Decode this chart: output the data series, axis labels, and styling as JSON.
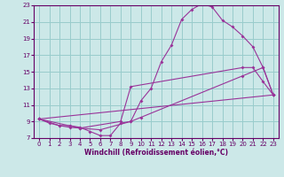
{
  "xlabel": "Windchill (Refroidissement éolien,°C)",
  "bg_color": "#cce8e8",
  "line_color": "#993399",
  "grid_color": "#99cccc",
  "xlim": [
    -0.5,
    23.5
  ],
  "ylim": [
    7,
    23
  ],
  "xticks": [
    0,
    1,
    2,
    3,
    4,
    5,
    6,
    7,
    8,
    9,
    10,
    11,
    12,
    13,
    14,
    15,
    16,
    17,
    18,
    19,
    20,
    21,
    22,
    23
  ],
  "yticks": [
    7,
    9,
    11,
    13,
    15,
    17,
    19,
    21,
    23
  ],
  "series1": [
    [
      0,
      9.3
    ],
    [
      1,
      8.8
    ],
    [
      2,
      8.5
    ],
    [
      3,
      8.5
    ],
    [
      4,
      8.3
    ],
    [
      5,
      7.8
    ],
    [
      6,
      7.3
    ],
    [
      7,
      7.3
    ],
    [
      8,
      8.8
    ],
    [
      9,
      9.0
    ],
    [
      10,
      11.5
    ],
    [
      11,
      13.0
    ],
    [
      12,
      16.2
    ],
    [
      13,
      18.2
    ],
    [
      14,
      21.3
    ],
    [
      15,
      22.5
    ],
    [
      16,
      23.2
    ],
    [
      17,
      22.8
    ],
    [
      18,
      21.2
    ],
    [
      19,
      20.4
    ],
    [
      20,
      19.3
    ],
    [
      21,
      18.0
    ],
    [
      22,
      15.5
    ],
    [
      23,
      12.2
    ]
  ],
  "series2": [
    [
      0,
      9.3
    ],
    [
      2,
      8.5
    ],
    [
      3,
      8.3
    ],
    [
      4,
      8.2
    ],
    [
      8,
      9.0
    ],
    [
      9,
      13.2
    ],
    [
      20,
      15.5
    ],
    [
      21,
      15.5
    ],
    [
      22,
      13.8
    ],
    [
      23,
      12.2
    ]
  ],
  "series3": [
    [
      0,
      9.3
    ],
    [
      4,
      8.2
    ],
    [
      6,
      8.0
    ],
    [
      9,
      9.0
    ],
    [
      10,
      9.5
    ],
    [
      20,
      14.5
    ],
    [
      22,
      15.5
    ],
    [
      23,
      12.2
    ]
  ],
  "series4": [
    [
      0,
      9.3
    ],
    [
      23,
      12.2
    ]
  ],
  "marker_size": 2.0,
  "line_width": 0.8,
  "tick_fontsize": 5,
  "xlabel_fontsize": 5.5,
  "spine_color": "#660066"
}
